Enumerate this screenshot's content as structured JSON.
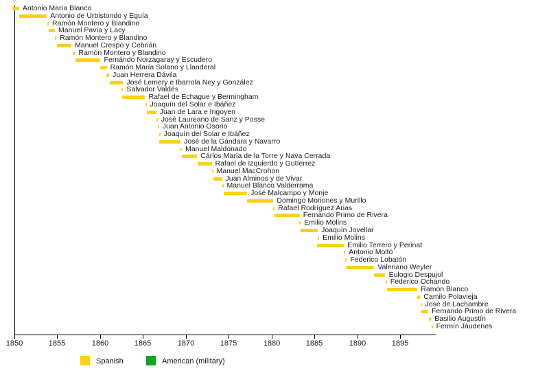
{
  "chart_data": {
    "type": "bar",
    "title": "",
    "description": "Horizontal timeline (Gantt-style) of office terms, one bar per row, descending diagonally from 1850 to 1898",
    "xlabel": "",
    "ylabel": "",
    "x_axis": {
      "unit": "year",
      "range": [
        1849.7,
        1899.2
      ],
      "ticks": [
        1850,
        1855,
        1860,
        1865,
        1870,
        1875,
        1880,
        1885,
        1890,
        1895
      ],
      "grid": false
    },
    "legend_position": "bottom",
    "legend": [
      {
        "label": "Spanish",
        "group": "spanish"
      },
      {
        "label": "American (military)",
        "group": "american"
      }
    ],
    "colors": {
      "spanish": "#FCD116",
      "american": "#0CA524",
      "axis": "#000000",
      "text": "#1b1b1b"
    },
    "bars": [
      {
        "label": "Antonio María Blanco",
        "start": 1849.78,
        "end": 1850.55,
        "group": "spanish"
      },
      {
        "label": "Antonio de Urbistondo y Eguía",
        "start": 1850.55,
        "end": 1853.78,
        "group": "spanish"
      },
      {
        "label": "Ramón Montero y Blandino",
        "start": 1853.82,
        "end": 1854.0,
        "group": "spanish"
      },
      {
        "label": "Manuel Pavía y Lacy",
        "start": 1854.02,
        "end": 1854.72,
        "group": "spanish"
      },
      {
        "label": "Ramón Montero y Blandino",
        "start": 1854.74,
        "end": 1854.9,
        "group": "spanish"
      },
      {
        "label": "Manuel Crespo y Cebrián",
        "start": 1854.92,
        "end": 1856.65,
        "group": "spanish"
      },
      {
        "label": "Ramón Montero y Blandino",
        "start": 1856.8,
        "end": 1857.08,
        "group": "spanish"
      },
      {
        "label": "Fernándo Norzagaray y Escudero",
        "start": 1857.1,
        "end": 1860.05,
        "group": "spanish"
      },
      {
        "label": "Ramón María Solano y Llanderal",
        "start": 1860.0,
        "end": 1860.78,
        "group": "spanish"
      },
      {
        "label": "Juan Herrera Dávila",
        "start": 1860.75,
        "end": 1861.05,
        "group": "spanish"
      },
      {
        "label": "José Lemery e Ibarrola Ney y González",
        "start": 1861.1,
        "end": 1862.68,
        "group": "spanish"
      },
      {
        "label": "Salvador Valdés",
        "start": 1862.52,
        "end": 1862.66,
        "group": "spanish"
      },
      {
        "label": "Rafael de Echague y Bermingham",
        "start": 1862.55,
        "end": 1865.25,
        "group": "spanish"
      },
      {
        "label": "Joaquín del Solar e Ibáñez",
        "start": 1865.25,
        "end": 1865.4,
        "group": "spanish"
      },
      {
        "label": "Juan de Lara e Irigoyen",
        "start": 1865.42,
        "end": 1866.55,
        "group": "spanish"
      },
      {
        "label": "José Laureano de Sanz y Posse",
        "start": 1866.56,
        "end": 1866.7,
        "group": "spanish"
      },
      {
        "label": "Juan Antonio Osorio",
        "start": 1866.72,
        "end": 1866.86,
        "group": "spanish"
      },
      {
        "label": "Joaquín del Solar e Ibáñez",
        "start": 1866.88,
        "end": 1867.0,
        "group": "spanish"
      },
      {
        "label": "José de la Gándara y Navarro",
        "start": 1866.92,
        "end": 1869.38,
        "group": "spanish"
      },
      {
        "label": "Manuel Maldonado",
        "start": 1869.38,
        "end": 1869.52,
        "group": "spanish"
      },
      {
        "label": "Cárlos María de la Torre y Nava Cerrada",
        "start": 1869.52,
        "end": 1871.32,
        "group": "spanish"
      },
      {
        "label": "Rafael de Izquierdo y Gutíerrez",
        "start": 1871.35,
        "end": 1873.02,
        "group": "spanish"
      },
      {
        "label": "Manuel MacCrohon",
        "start": 1873.02,
        "end": 1873.16,
        "group": "spanish"
      },
      {
        "label": "Juan Alminos y de Vivar",
        "start": 1873.18,
        "end": 1874.22,
        "group": "spanish"
      },
      {
        "label": "Manuel Blanco Valderrama",
        "start": 1874.22,
        "end": 1874.36,
        "group": "spanish"
      },
      {
        "label": "José Malcampo y Monje",
        "start": 1874.4,
        "end": 1877.15,
        "group": "spanish"
      },
      {
        "label": "Domingo Moriones y Murillo",
        "start": 1877.12,
        "end": 1880.22,
        "group": "spanish"
      },
      {
        "label": "Rafael Rodríguez Arias",
        "start": 1880.2,
        "end": 1880.34,
        "group": "spanish"
      },
      {
        "label": "Fernando Primo de Rivera",
        "start": 1880.32,
        "end": 1883.28,
        "group": "spanish"
      },
      {
        "label": "Emilio Molins",
        "start": 1883.25,
        "end": 1883.39,
        "group": "spanish"
      },
      {
        "label": "Joaquín Jovellar",
        "start": 1883.4,
        "end": 1885.4,
        "group": "spanish"
      },
      {
        "label": "Emilio Molins",
        "start": 1885.4,
        "end": 1885.54,
        "group": "spanish"
      },
      {
        "label": "Emilio Terrero y Perinat",
        "start": 1885.32,
        "end": 1888.45,
        "group": "spanish"
      },
      {
        "label": "Antonio Moltó",
        "start": 1888.45,
        "end": 1888.6,
        "group": "spanish"
      },
      {
        "label": "Federico Lobatón",
        "start": 1888.62,
        "end": 1888.74,
        "group": "spanish"
      },
      {
        "label": "Valeriano Weyler",
        "start": 1888.65,
        "end": 1891.98,
        "group": "spanish"
      },
      {
        "label": "Eulogio Despujol",
        "start": 1891.98,
        "end": 1893.28,
        "group": "spanish"
      },
      {
        "label": "Federico Ochando",
        "start": 1893.3,
        "end": 1893.44,
        "group": "spanish"
      },
      {
        "label": "Ramón Blanco",
        "start": 1893.45,
        "end": 1897.02,
        "group": "spanish"
      },
      {
        "label": "Camilo Polavieja",
        "start": 1897.0,
        "end": 1897.35,
        "group": "spanish"
      },
      {
        "label": "José de Lachambre",
        "start": 1897.36,
        "end": 1897.5,
        "group": "spanish"
      },
      {
        "label": "Fernando Primo de Rivera",
        "start": 1897.5,
        "end": 1898.28,
        "group": "spanish"
      },
      {
        "label": "Basilio Augustín",
        "start": 1898.32,
        "end": 1898.62,
        "group": "spanish"
      },
      {
        "label": "Fermín Jáudenes",
        "start": 1898.65,
        "end": 1898.78,
        "group": "spanish"
      }
    ]
  }
}
